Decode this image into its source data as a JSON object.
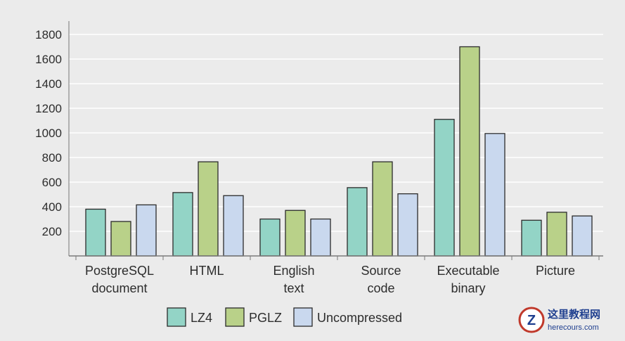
{
  "chart_data": {
    "type": "bar",
    "categories": [
      [
        "PostgreSQL",
        "document"
      ],
      [
        "HTML"
      ],
      [
        "English",
        "text"
      ],
      [
        "Source",
        "code"
      ],
      [
        "Executable",
        "binary"
      ],
      [
        "Picture"
      ]
    ],
    "series": [
      {
        "name": "LZ4",
        "color": "#93d4c6",
        "values": [
          380,
          515,
          300,
          555,
          1110,
          290
        ]
      },
      {
        "name": "PGLZ",
        "color": "#b9d189",
        "values": [
          280,
          765,
          370,
          765,
          1700,
          355
        ]
      },
      {
        "name": "Uncompressed",
        "color": "#c9d8ee",
        "values": [
          415,
          490,
          300,
          505,
          995,
          325
        ]
      }
    ],
    "y_ticks": [
      200,
      400,
      600,
      800,
      1000,
      1200,
      1400,
      1600,
      1800
    ],
    "ylim": [
      0,
      1800
    ],
    "grid": true,
    "legend_position": "bottom-center"
  },
  "watermark": {
    "logo_text": "Z",
    "title": "这里教程网",
    "url": "herecours.com"
  }
}
